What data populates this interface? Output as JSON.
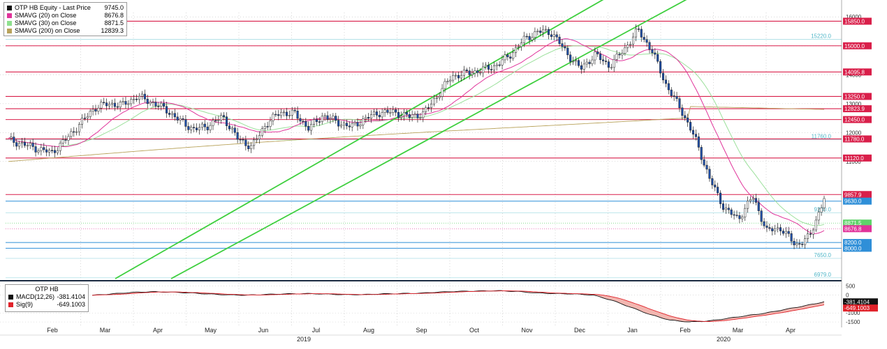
{
  "legend": {
    "items": [
      {
        "label": "OTP HB Equity - Last Price",
        "value": "9745.0",
        "color": "#111111",
        "symbol": "candle-icon"
      },
      {
        "label": "SMAVG (20)  on Close",
        "value": "8676.8",
        "color": "#e0339a",
        "symbol": "square-icon"
      },
      {
        "label": "SMAVG (30)  on Close",
        "value": "8871.5",
        "color": "#8ee08e",
        "symbol": "square-icon"
      },
      {
        "label": "SMAVG (200)  on Close",
        "value": "12839.3",
        "color": "#b8a25a",
        "symbol": "square-icon"
      }
    ]
  },
  "macd_legend": {
    "title": "OTP HB",
    "items": [
      {
        "label": "MACD(12,26)",
        "value": "-381.4104",
        "color": "#111111"
      },
      {
        "label": "Sig(9)",
        "value": "-649.1003",
        "color": "#e0222a"
      }
    ]
  },
  "colors": {
    "candle": "#1f4fa8",
    "resistance": "#d91f4a",
    "support_blue": "#2f8fd8",
    "channel": "#3ecf3e",
    "sma20": "#e0339a",
    "sma30": "#9be09b",
    "sma200": "#b8a25a",
    "cyan": "#9ad8e0",
    "grid": "#c7c7c7",
    "macd": "#111111",
    "signal": "#e0222a",
    "macd_fill": "#f2b6b0"
  },
  "chart_data": {
    "type": "candlestick",
    "y_axis": {
      "range": [
        6950,
        16150
      ],
      "ticks": [
        11000,
        12000,
        13000,
        14000,
        15000,
        16000
      ]
    },
    "x_axis": {
      "months": [
        "Feb",
        "Mar",
        "Apr",
        "May",
        "Jun",
        "Jul",
        "Aug",
        "Sep",
        "Oct",
        "Nov",
        "Dec",
        "Jan",
        "Feb",
        "Mar",
        "Apr"
      ],
      "years": [
        "2019",
        "2020"
      ]
    },
    "price_path_weekly": [
      11750,
      11600,
      11450,
      11300,
      11750,
      12300,
      12850,
      13000,
      12950,
      13250,
      13050,
      12800,
      12400,
      12100,
      12250,
      12550,
      11800,
      11500,
      12300,
      12700,
      12650,
      12150,
      12600,
      12350,
      12200,
      12500,
      12700,
      12700,
      12550,
      12650,
      13300,
      13950,
      14050,
      14150,
      14300,
      14650,
      15200,
      15500,
      15450,
      14750,
      14200,
      14700,
      14300,
      14850,
      15550,
      14800,
      13600,
      12800,
      11780,
      10400,
      9400,
      9000,
      9800,
      8600,
      8700,
      8100,
      8400,
      9745
    ],
    "horizontal_levels": [
      {
        "label": "15850.0",
        "value": 15850,
        "kind": "resistance"
      },
      {
        "label": "15220.0",
        "value": 15220,
        "kind": "cyan_text"
      },
      {
        "label": "15000.0",
        "value": 15000,
        "kind": "resistance"
      },
      {
        "label": "14095.8",
        "value": 14095.8,
        "kind": "resistance"
      },
      {
        "label": "13250.0",
        "value": 13250,
        "kind": "resistance"
      },
      {
        "label": "12823.9",
        "value": 12823.9,
        "kind": "resistance"
      },
      {
        "label": "12450.0",
        "value": 12450,
        "kind": "resistance"
      },
      {
        "label": "11760.0",
        "value": 11760,
        "kind": "cyan_text"
      },
      {
        "label": "11780.0",
        "value": 11780,
        "kind": "resistance"
      },
      {
        "label": "11120.0",
        "value": 11120,
        "kind": "resistance"
      },
      {
        "label": "9857.9",
        "value": 9857.9,
        "kind": "resistance"
      },
      {
        "label": "9630.0",
        "value": 9630,
        "kind": "support"
      },
      {
        "label": "9230.0",
        "value": 9230,
        "kind": "cyan_text"
      },
      {
        "label": "8871.5",
        "value": 8871.5,
        "kind": "sma30"
      },
      {
        "label": "8676.8",
        "value": 8676.8,
        "kind": "sma20"
      },
      {
        "label": "8200.0",
        "value": 8200,
        "kind": "support"
      },
      {
        "label": "8000.0",
        "value": 8000,
        "kind": "support"
      },
      {
        "label": "7650.0",
        "value": 7650,
        "kind": "cyan_text"
      },
      {
        "label": "6979.0",
        "value": 6979,
        "kind": "cyan_text"
      }
    ],
    "macd_panel": {
      "range": [
        -1650,
        600
      ],
      "ticks": [
        500,
        0,
        -1000,
        -1500
      ],
      "macd_weekly": [
        -20,
        60,
        140,
        180,
        160,
        120,
        60,
        10,
        -10,
        30,
        60,
        80,
        60,
        20,
        20,
        60,
        80,
        100,
        160,
        200,
        220,
        240,
        200,
        120,
        80,
        60,
        0,
        -300,
        -700,
        -1100,
        -1400,
        -1500,
        -1450,
        -1300,
        -1150,
        -1000,
        -800,
        -600,
        -381.4
      ]
    }
  }
}
